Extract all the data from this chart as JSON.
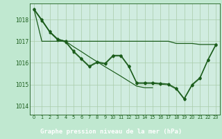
{
  "title": "Graphe pression niveau de la mer (hPa)",
  "background_color": "#c0e8d0",
  "plot_bg_color": "#d0ece0",
  "label_bar_color": "#2e7d32",
  "line_color": "#1a5c1a",
  "grid_color": "#a8cca8",
  "ylim": [
    1013.6,
    1018.75
  ],
  "yticks": [
    1014,
    1015,
    1016,
    1017,
    1018
  ],
  "xticks": [
    0,
    1,
    2,
    3,
    4,
    5,
    6,
    7,
    8,
    9,
    10,
    11,
    12,
    13,
    14,
    15,
    16,
    17,
    18,
    19,
    20,
    21,
    22,
    23
  ],
  "series_main": [
    1018.5,
    1018.0,
    1017.45,
    1017.1,
    1017.0,
    1016.55,
    1016.2,
    1015.85,
    1016.05,
    1015.98,
    1016.35,
    1016.35,
    1015.85,
    1015.08,
    1015.08,
    1015.08,
    1015.05,
    1015.02,
    1014.82,
    1014.35,
    1015.0,
    1015.32,
    1016.15,
    1016.85
  ],
  "series_main2": [
    1018.5,
    1018.0,
    1017.45,
    1017.1,
    1017.0,
    1016.55,
    1016.2,
    1015.85,
    1016.05,
    1015.98,
    1016.35,
    1016.35,
    1015.85,
    1015.08,
    1015.08,
    1015.08,
    1015.05,
    1015.02,
    1014.82,
    1014.35,
    1015.0,
    1015.32,
    1016.15,
    1016.85
  ],
  "series_flat": [
    1018.5,
    1017.0,
    1017.0,
    1017.0,
    1017.0,
    1017.0,
    1017.0,
    1017.0,
    1017.0,
    1017.0,
    1017.0,
    1017.0,
    1017.0,
    1017.0,
    1017.0,
    1017.0,
    1017.0,
    1017.0,
    1016.9,
    1016.9,
    1016.9,
    1016.85,
    1016.85,
    1016.85
  ],
  "series_diag": [
    1018.5,
    1017.95,
    1017.45,
    1017.1,
    1017.0,
    1016.75,
    1016.52,
    1016.28,
    1016.05,
    1015.82,
    1015.6,
    1015.38,
    1015.15,
    1014.92,
    1014.85,
    1014.85
  ],
  "figsize": [
    3.2,
    2.0
  ],
  "dpi": 100
}
